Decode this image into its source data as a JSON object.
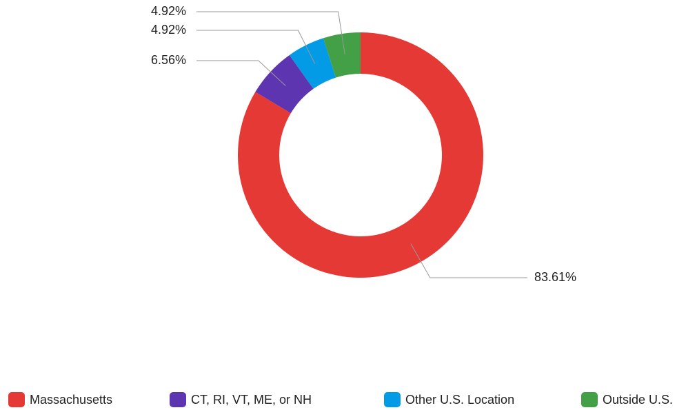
{
  "chart_data": {
    "type": "donut",
    "categories": [
      "Massachusetts",
      "CT, RI, VT, ME, or NH",
      "Other U.S. Location",
      "Outside U.S."
    ],
    "values": [
      83.61,
      6.56,
      4.92,
      4.92
    ],
    "value_labels": [
      "83.61%",
      "6.56%",
      "4.92%",
      "4.92%"
    ],
    "colors": [
      "#e53935",
      "#5e35b1",
      "#039be5",
      "#43a047"
    ],
    "legend": "bottom"
  }
}
